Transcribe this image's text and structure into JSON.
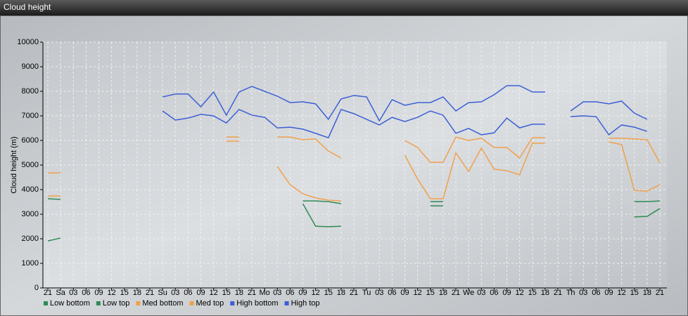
{
  "chart_data": {
    "type": "line",
    "title": "Cloud height",
    "y_label": "Cloud height (m)",
    "categories": [
      "21",
      "Sa",
      "03",
      "06",
      "09",
      "12",
      "15",
      "18",
      "21",
      "Su",
      "03",
      "06",
      "09",
      "12",
      "15",
      "18",
      "21",
      "Mo",
      "03",
      "06",
      "09",
      "12",
      "15",
      "18",
      "21",
      "Tu",
      "03",
      "06",
      "09",
      "12",
      "15",
      "18",
      "21",
      "We",
      "03",
      "06",
      "09",
      "12",
      "15",
      "18",
      "21",
      "Th",
      "03",
      "06",
      "09",
      "12",
      "15",
      "18",
      "21"
    ],
    "ylim": [
      0,
      10000
    ],
    "yticks": [
      0,
      1000,
      2000,
      3000,
      4000,
      5000,
      6000,
      7000,
      8000,
      9000,
      10000
    ],
    "grid": true,
    "legend": "bottom-left",
    "series": [
      {
        "name": "Low bottom",
        "color": "#2e8b57",
        "values": [
          1910,
          2030,
          null,
          null,
          null,
          null,
          null,
          null,
          null,
          null,
          null,
          null,
          null,
          null,
          null,
          null,
          null,
          null,
          null,
          null,
          3430,
          2510,
          2490,
          2510,
          null,
          null,
          null,
          null,
          null,
          null,
          3340,
          3340,
          null,
          null,
          null,
          null,
          null,
          null,
          null,
          null,
          null,
          null,
          null,
          null,
          null,
          null,
          2890,
          2910,
          3230
        ]
      },
      {
        "name": "Low top",
        "color": "#2e8b57",
        "values": [
          3630,
          3600,
          null,
          null,
          null,
          null,
          null,
          null,
          null,
          null,
          null,
          null,
          null,
          null,
          null,
          null,
          null,
          null,
          null,
          null,
          3540,
          3540,
          3510,
          3430,
          null,
          null,
          null,
          null,
          null,
          null,
          3510,
          3510,
          null,
          null,
          null,
          null,
          null,
          null,
          null,
          null,
          null,
          null,
          null,
          null,
          null,
          null,
          3510,
          3510,
          3540
        ]
      },
      {
        "name": "Med bottom",
        "color": "#f0a04b",
        "values": [
          3740,
          3740,
          null,
          null,
          null,
          null,
          null,
          null,
          null,
          null,
          null,
          null,
          null,
          null,
          5970,
          5970,
          null,
          null,
          4940,
          4200,
          3830,
          3660,
          3570,
          3540,
          null,
          null,
          null,
          null,
          5400,
          4430,
          3630,
          3630,
          5490,
          4740,
          5690,
          4830,
          4770,
          4600,
          5890,
          5890,
          null,
          null,
          null,
          null,
          5940,
          5830,
          3970,
          3940,
          4200
        ]
      },
      {
        "name": "Med top",
        "color": "#f0a04b",
        "values": [
          4680,
          4680,
          null,
          null,
          null,
          null,
          null,
          null,
          null,
          null,
          null,
          null,
          null,
          null,
          6140,
          6140,
          null,
          null,
          6140,
          6140,
          6030,
          6060,
          5570,
          5290,
          null,
          null,
          null,
          null,
          6000,
          5710,
          5110,
          5110,
          6140,
          6000,
          6090,
          5710,
          5710,
          5290,
          6110,
          6110,
          null,
          null,
          null,
          null,
          6090,
          6090,
          6060,
          6030,
          5090
        ]
      },
      {
        "name": "High bottom",
        "color": "#3b5fd6",
        "values": [
          null,
          null,
          null,
          null,
          null,
          null,
          null,
          null,
          null,
          7200,
          6830,
          6910,
          7060,
          7000,
          6710,
          7260,
          7030,
          6940,
          6510,
          6540,
          6460,
          6290,
          6110,
          7260,
          7090,
          6860,
          6630,
          6940,
          6770,
          6940,
          7200,
          7030,
          6290,
          6490,
          6230,
          6310,
          6910,
          6510,
          6660,
          6660,
          null,
          6970,
          7000,
          6970,
          6230,
          6630,
          6540,
          6370,
          null
        ]
      },
      {
        "name": "High top",
        "color": "#3b5fd6",
        "values": [
          null,
          null,
          null,
          null,
          null,
          null,
          null,
          null,
          null,
          7770,
          7890,
          7890,
          7370,
          7970,
          7030,
          7970,
          8200,
          8000,
          7800,
          7540,
          7570,
          7490,
          6860,
          7690,
          7830,
          7770,
          6800,
          7660,
          7430,
          7540,
          7540,
          7770,
          7200,
          7540,
          7570,
          7860,
          8230,
          8230,
          7970,
          7970,
          null,
          7200,
          7570,
          7570,
          7490,
          7600,
          7110,
          6860,
          null
        ]
      }
    ]
  }
}
